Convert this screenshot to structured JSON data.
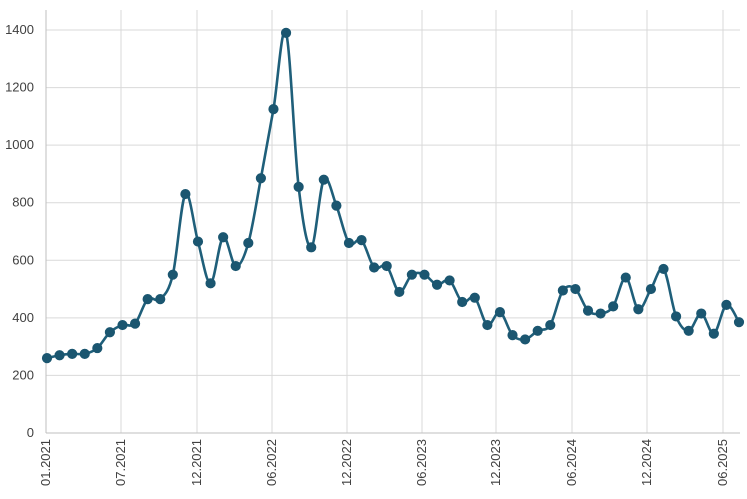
{
  "chart_data": {
    "type": "line",
    "title": "",
    "xlabel": "",
    "ylabel": "",
    "ylim": [
      0,
      1400
    ],
    "yticks": [
      0,
      200,
      400,
      600,
      800,
      1000,
      1200,
      1400
    ],
    "xtick_labels": [
      "01.2021",
      "07.2021",
      "12.2021",
      "06.2022",
      "12.2022",
      "06.2023",
      "12.2023",
      "06.2024",
      "12.2024",
      "06.2025"
    ],
    "grid": true,
    "legend": "none",
    "colors": {
      "line": "#1f5f7a",
      "marker": "#1b5670",
      "grid": "#d9d9d9",
      "axis": "#bfbfbf",
      "text": "#404040"
    },
    "series": [
      {
        "values": [
          260,
          270,
          275,
          275,
          295,
          350,
          375,
          380,
          465,
          465,
          550,
          830,
          665,
          520,
          680,
          580,
          660,
          885,
          1125,
          1390,
          855,
          645,
          880,
          790,
          660,
          670,
          575,
          580,
          490,
          550,
          550,
          515,
          530,
          455,
          470,
          375,
          420,
          340,
          325,
          355,
          375,
          495,
          500,
          425,
          415,
          440,
          540,
          430,
          500,
          570,
          405,
          355,
          415,
          345,
          445,
          385
        ]
      }
    ]
  }
}
